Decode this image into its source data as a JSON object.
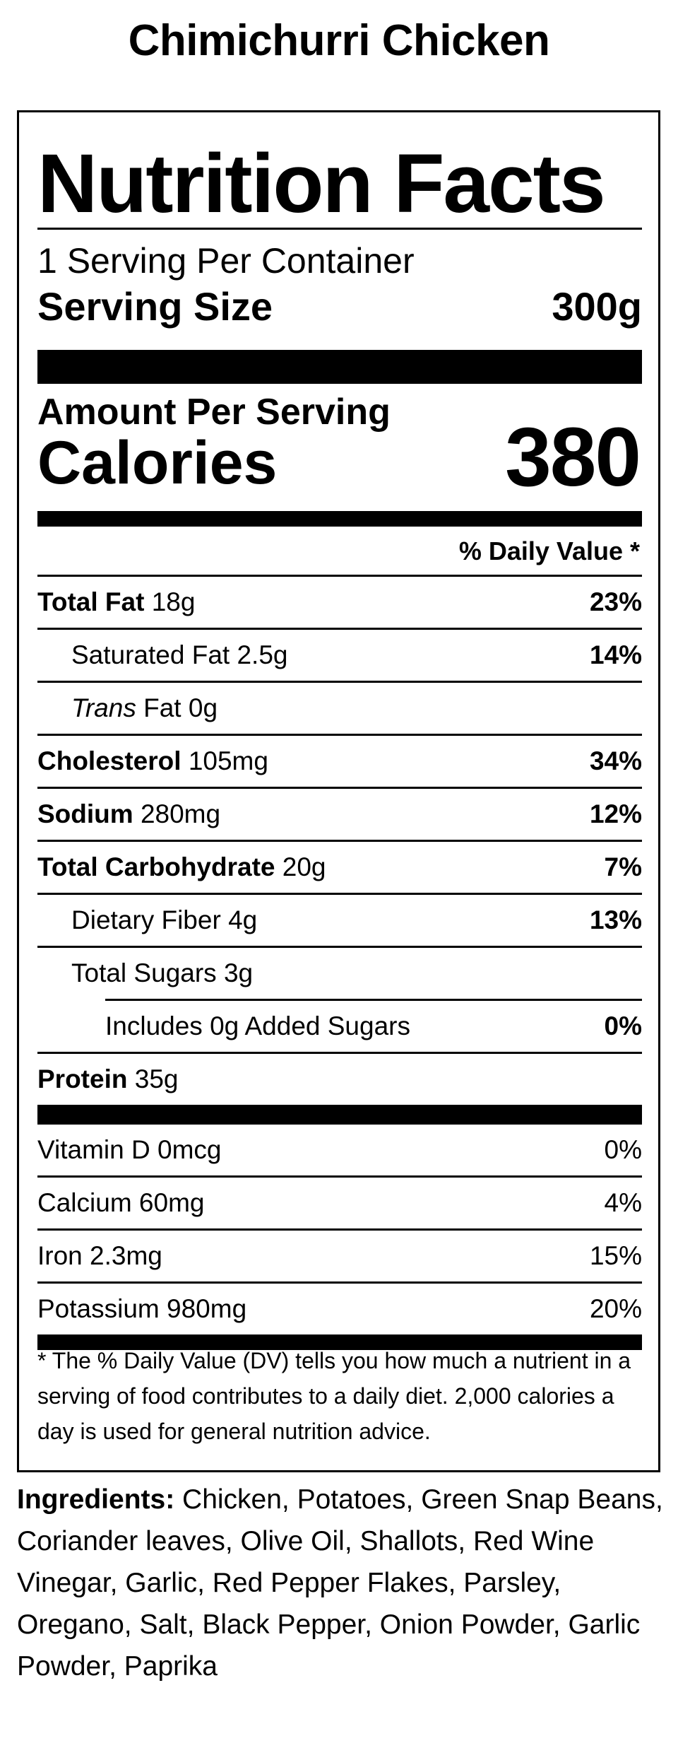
{
  "product": {
    "name": "Chimichurri Chicken"
  },
  "label": {
    "title": "Nutrition Facts",
    "servings_per_container": "1 Serving Per Container",
    "serving_size_label": "Serving Size",
    "serving_size_value": "300g",
    "amount_per_serving": "Amount Per Serving",
    "calories_label": "Calories",
    "calories_value": "380",
    "daily_value_header": "% Daily Value *"
  },
  "nutrients": [
    {
      "name": "Total Fat",
      "amount": "18g",
      "dv": "23%"
    },
    {
      "name": "Saturated Fat",
      "amount": "2.5g",
      "dv": "14%"
    },
    {
      "name_italic": "Trans",
      "name": "Fat",
      "amount": "0g",
      "dv": ""
    },
    {
      "name": "Cholesterol",
      "amount": "105mg",
      "dv": "34%"
    },
    {
      "name": "Sodium",
      "amount": "280mg",
      "dv": "12%"
    },
    {
      "name": "Total Carbohydrate",
      "amount": "20g",
      "dv": "7%"
    },
    {
      "name": "Dietary Fiber",
      "amount": "4g",
      "dv": "13%"
    },
    {
      "name": "Total Sugars",
      "amount": "3g",
      "dv": ""
    },
    {
      "name": "Includes 0g Added Sugars",
      "amount": "",
      "dv": "0%"
    },
    {
      "name": "Protein",
      "amount": "35g",
      "dv": ""
    }
  ],
  "vitamins": [
    {
      "name": "Vitamin D",
      "amount": "0mcg",
      "dv": "0%"
    },
    {
      "name": "Calcium",
      "amount": "60mg",
      "dv": "4%"
    },
    {
      "name": "Iron",
      "amount": "2.3mg",
      "dv": "15%"
    },
    {
      "name": "Potassium",
      "amount": "980mg",
      "dv": "20%"
    }
  ],
  "footnote": "* The % Daily Value (DV) tells you how much a nutrient in a serving of food contributes to a daily diet. 2,000 calories a day is used for general nutrition advice.",
  "ingredients": {
    "label": "Ingredients:",
    "text": "Chicken, Potatoes, Green Snap Beans, Coriander leaves, Olive Oil, Shallots, Red Wine Vinegar, Garlic, Red Pepper Flakes, Parsley, Oregano, Salt, Black Pepper, Onion Powder, Garlic Powder, Paprika"
  }
}
